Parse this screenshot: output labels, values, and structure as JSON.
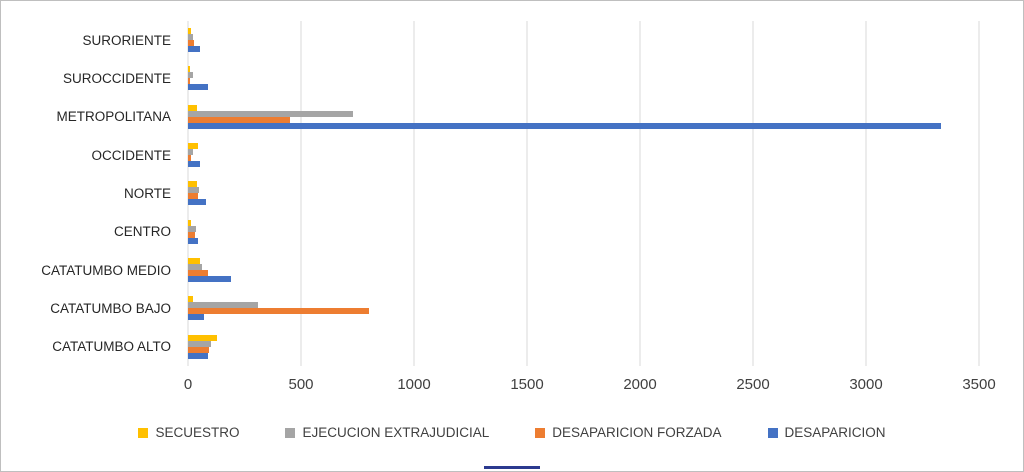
{
  "chart_data": {
    "type": "bar",
    "orientation": "horizontal",
    "title": "",
    "xlabel": "",
    "ylabel": "",
    "xlim": [
      0,
      3500
    ],
    "xticks": [
      0,
      500,
      1000,
      1500,
      2000,
      2500,
      3000,
      3500
    ],
    "grid": true,
    "legend_position": "bottom",
    "categories": [
      "SURORIENTE",
      "SUROCCIDENTE",
      "METROPOLITANA",
      "OCCIDENTE",
      "NORTE",
      "CENTRO",
      "CATATUMBO MEDIO",
      "CATATUMBO BAJO",
      "CATATUMBO ALTO"
    ],
    "series": [
      {
        "name": "SECUESTRO",
        "color": "#FFC000",
        "values": [
          15,
          10,
          40,
          45,
          40,
          15,
          55,
          20,
          130
        ]
      },
      {
        "name": "EJECUCION EXTRAJUDICIAL",
        "color": "#A5A5A5",
        "values": [
          20,
          20,
          730,
          20,
          50,
          35,
          60,
          310,
          100
        ]
      },
      {
        "name": "DESAPARICION FORZADA",
        "color": "#ED7D31",
        "values": [
          25,
          10,
          450,
          15,
          45,
          30,
          90,
          800,
          95
        ]
      },
      {
        "name": "DESAPARICION",
        "color": "#4472C4",
        "values": [
          55,
          90,
          3330,
          55,
          80,
          45,
          190,
          70,
          90
        ]
      }
    ],
    "colors": {
      "gridline": "#D9D9D9",
      "axis_text": "#404040"
    }
  }
}
